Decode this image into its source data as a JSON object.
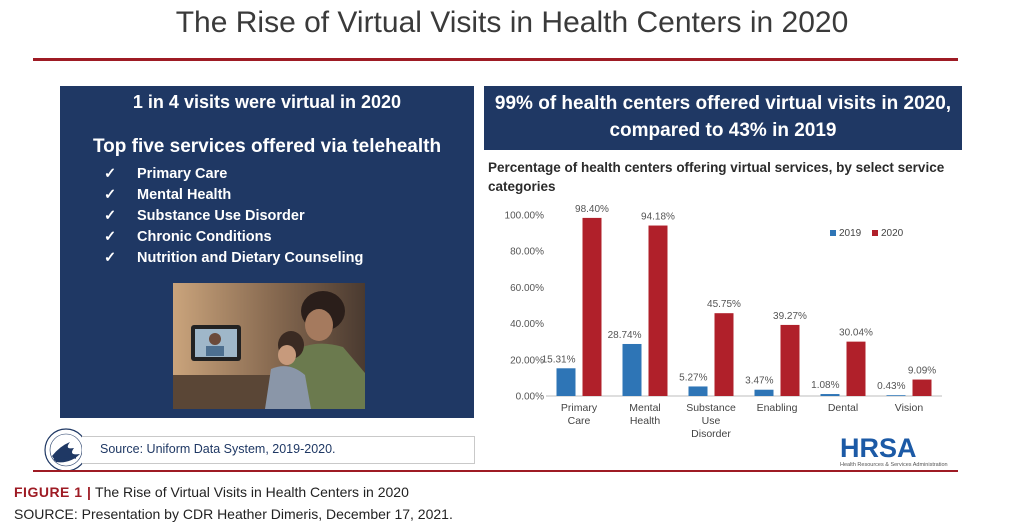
{
  "slide": {
    "title": "The Rise of Virtual Visits in Health Centers in 2020"
  },
  "left_panel": {
    "headline": "1 in 4 visits were virtual in 2020",
    "subhead": "Top five services offered via telehealth",
    "check_glyph": "✓",
    "services": [
      "Primary Care",
      "Mental Health",
      "Substance Use Disorder",
      "Chronic Conditions",
      "Nutrition and Dietary Counseling"
    ]
  },
  "right_banner": {
    "text": "99% of health centers offered virtual visits in 2020, compared to 43% in 2019"
  },
  "chart_subtitle": "Percentage of health centers offering virtual services, by select service categories",
  "chart_data": {
    "type": "bar",
    "title": "",
    "xlabel": "",
    "ylabel": "",
    "categories": [
      [
        "Primary",
        "Care"
      ],
      [
        "Mental",
        "Health"
      ],
      [
        "Substance",
        "Use",
        "Disorder"
      ],
      [
        "Enabling"
      ],
      [
        "Dental"
      ],
      [
        "Vision"
      ]
    ],
    "series": [
      {
        "name": "2019",
        "color": "#2e75b6",
        "values": [
          15.31,
          28.74,
          5.27,
          3.47,
          1.08,
          0.43
        ],
        "labels": [
          "15.31%",
          "28.74%",
          "5.27%",
          "3.47%",
          "1.08%",
          "0.43%"
        ]
      },
      {
        "name": "2020",
        "color": "#b0202a",
        "values": [
          98.4,
          94.18,
          45.75,
          39.27,
          30.04,
          9.09
        ],
        "labels": [
          "98.40%",
          "94.18%",
          "45.75%",
          "39.27%",
          "30.04%",
          "9.09%"
        ]
      }
    ],
    "ylim": [
      0,
      100
    ],
    "yticks": [
      0,
      20,
      40,
      60,
      80,
      100
    ],
    "ytick_labels": [
      "0.00%",
      "20.00%",
      "40.00%",
      "60.00%",
      "80.00%",
      "100.00%"
    ],
    "grid": false,
    "legend_position": "top-right"
  },
  "source_note": "Source: Uniform Data System, 2019-2020.",
  "logo": {
    "text": "HRSA",
    "tagline": "Health Resources & Services Administration"
  },
  "caption": {
    "label": "FIGURE 1 |",
    "text": " The Rise of Virtual Visits in Health Centers in 2020",
    "source": "SOURCE: Presentation by CDR Heather Dimeris, December 17, 2021."
  }
}
